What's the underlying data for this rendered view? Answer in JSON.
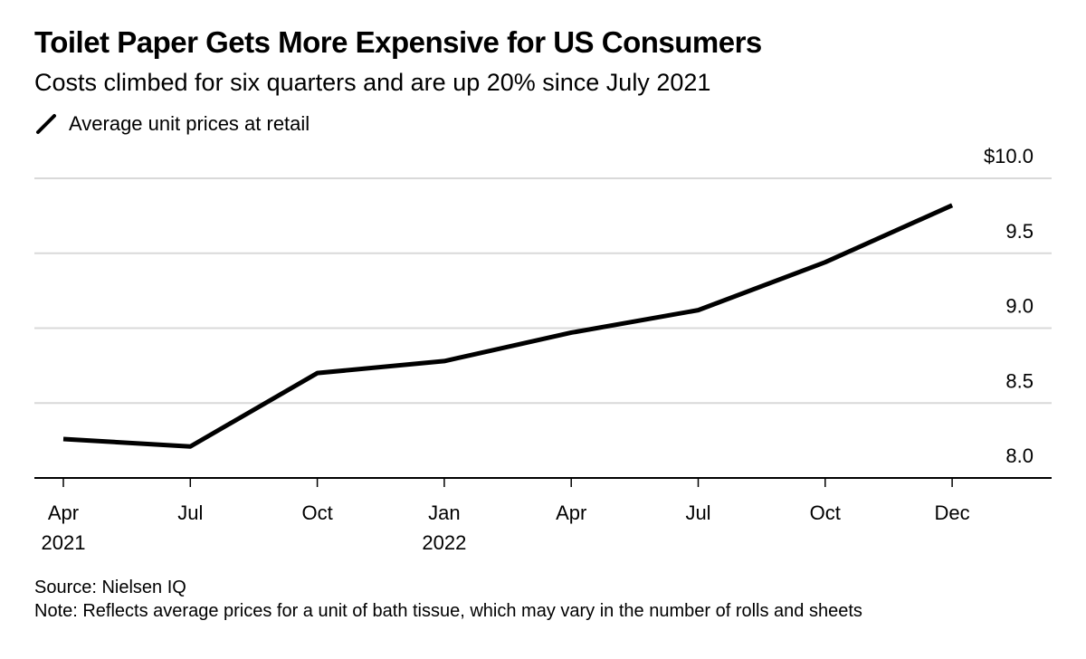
{
  "chart_data": {
    "type": "line",
    "title": "Toilet Paper Gets More Expensive for US Consumers",
    "subtitle": "Costs climbed for six quarters and are up 20% since July 2021",
    "categories": [
      "Apr 2021",
      "Jul 2021",
      "Oct 2021",
      "Jan 2022",
      "Apr 2022",
      "Jul 2022",
      "Oct 2022",
      "Dec 2022"
    ],
    "x_tick_labels": [
      {
        "line1": "Apr",
        "line2": "2021"
      },
      {
        "line1": "Jul",
        "line2": ""
      },
      {
        "line1": "Oct",
        "line2": ""
      },
      {
        "line1": "Jan",
        "line2": "2022"
      },
      {
        "line1": "Apr",
        "line2": ""
      },
      {
        "line1": "Jul",
        "line2": ""
      },
      {
        "line1": "Oct",
        "line2": ""
      },
      {
        "line1": "Dec",
        "line2": ""
      }
    ],
    "series": [
      {
        "name": "Average unit prices at retail",
        "color": "#000000",
        "values": [
          8.26,
          8.21,
          8.7,
          8.78,
          8.97,
          9.12,
          9.44,
          9.82
        ]
      }
    ],
    "ylim": [
      8.0,
      10.0
    ],
    "y_ticks": [
      8.0,
      8.5,
      9.0,
      9.5,
      10.0
    ],
    "y_tick_labels": [
      "8.0",
      "8.5",
      "9.0",
      "9.5",
      "$10.0"
    ],
    "y_axis_side": "right",
    "grid": true,
    "grid_color": "#d9d9d9",
    "legend_placement": "top-left",
    "xlabel": "",
    "ylabel": ""
  },
  "footer": {
    "source": "Source: Nielsen IQ",
    "note": "Note: Reflects average prices for a unit of bath tissue, which may vary in the number of rolls and sheets"
  }
}
